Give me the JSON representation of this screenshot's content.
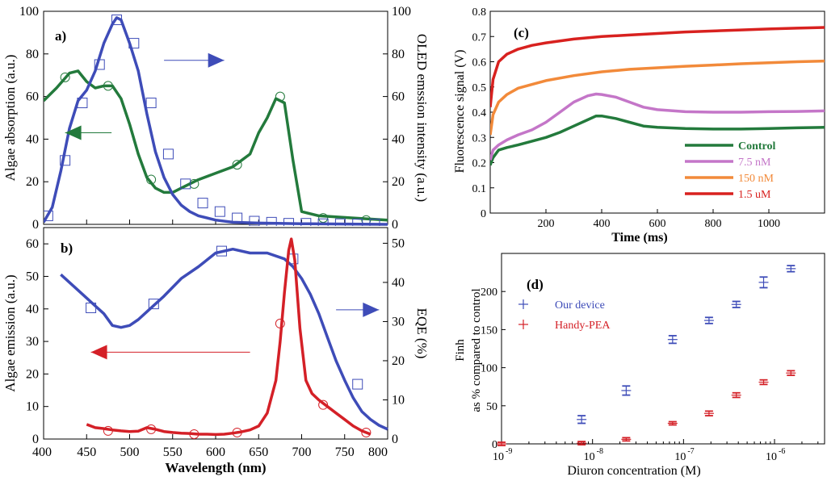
{
  "figure": {
    "panel_a_label": "a)",
    "panel_b_label": "b)",
    "panel_c_label": "(c)",
    "panel_d_label": "(d)"
  },
  "colors": {
    "green": "#237a3c",
    "blue": "#3e4cb8",
    "red": "#d42027",
    "violet": "#c476c8",
    "orange": "#f28a3a",
    "darkred": "#d8211f",
    "axis": "#000000"
  },
  "chart_data": [
    {
      "id": "a",
      "type": "line",
      "title": "a)",
      "xlabel": "",
      "ylabel": "Algae absorption (a.u.)",
      "y2label": "OLED emssion intensity (a.u.)",
      "xlim": [
        400,
        800
      ],
      "ylim": [
        0,
        100
      ],
      "y2lim": [
        0,
        100
      ],
      "xticks": [
        400,
        450,
        500,
        550,
        600,
        650,
        700,
        750,
        800
      ],
      "yticks": [
        "0",
        "20",
        "40",
        "60",
        "80",
        "100"
      ],
      "y2ticks": [
        "0",
        "20",
        "40",
        "60",
        "80",
        "100"
      ],
      "series": [
        {
          "name": "Algae absorption",
          "axis": "left",
          "color": "green",
          "marker": "circle",
          "x": [
            400,
            415,
            430,
            440,
            450,
            460,
            470,
            480,
            490,
            500,
            510,
            520,
            530,
            540,
            550,
            560,
            570,
            580,
            600,
            620,
            640,
            650,
            660,
            670,
            680,
            690,
            700,
            720,
            760,
            800
          ],
          "y": [
            58,
            64,
            71,
            72,
            67,
            64,
            65,
            65,
            59,
            47,
            33,
            22,
            17,
            15,
            15,
            17,
            19,
            21,
            24,
            27,
            33,
            43,
            50,
            59,
            57,
            30,
            6,
            4,
            3,
            2
          ],
          "markers_x": [
            425,
            475,
            525,
            575,
            625,
            675,
            725,
            775
          ],
          "markers_y": [
            69,
            65,
            21,
            19,
            28,
            60,
            3,
            2
          ]
        },
        {
          "name": "OLED emission",
          "axis": "right",
          "color": "blue",
          "marker": "square",
          "x": [
            400,
            410,
            420,
            430,
            440,
            450,
            460,
            470,
            480,
            485,
            490,
            500,
            510,
            520,
            530,
            540,
            550,
            560,
            570,
            580,
            600,
            620,
            650,
            700,
            800
          ],
          "y": [
            1,
            8,
            25,
            45,
            58,
            63,
            72,
            85,
            94,
            97,
            96,
            85,
            72,
            52,
            34,
            22,
            14,
            9,
            6,
            4,
            2,
            1,
            0.6,
            0.3,
            0
          ],
          "markers_x": [
            405,
            425,
            445,
            465,
            485,
            505,
            525,
            545,
            565,
            585,
            605,
            625,
            645,
            665,
            685,
            705,
            725,
            745,
            765,
            785
          ],
          "markers_y": [
            4,
            30,
            57,
            75,
            96,
            85,
            57,
            33,
            19,
            10,
            6,
            3,
            1.5,
            1,
            0.5,
            0.5,
            0.3,
            0.3,
            0.2,
            0.2
          ]
        }
      ],
      "annotations": [
        {
          "kind": "arrow",
          "direction": "right",
          "color": "blue",
          "from_data": [
            540,
            77
          ],
          "to_data": [
            610,
            77
          ]
        },
        {
          "kind": "arrow",
          "direction": "left",
          "color": "green",
          "from_data": [
            479,
            43
          ],
          "to_data": [
            425,
            43
          ]
        }
      ]
    },
    {
      "id": "b",
      "type": "line",
      "title": "b)",
      "xlabel": "Wavelength (nm)",
      "ylabel": "Algae emission (a.u.)",
      "y2label": "EQE (%)",
      "xlim": [
        400,
        800
      ],
      "ylim": [
        0,
        65
      ],
      "y2lim": [
        0,
        54
      ],
      "xticks": [
        400,
        450,
        500,
        550,
        600,
        650,
        700,
        750,
        800
      ],
      "yticks": [
        "0",
        "10",
        "20",
        "30",
        "40",
        "50",
        "60"
      ],
      "y2ticks": [
        "0",
        "10",
        "20",
        "30",
        "40",
        "50"
      ],
      "series": [
        {
          "name": "EQE",
          "axis": "right",
          "color": "blue",
          "marker": "square",
          "x": [
            420,
            430,
            440,
            450,
            460,
            470,
            480,
            490,
            500,
            510,
            520,
            540,
            560,
            580,
            600,
            620,
            640,
            660,
            680,
            690,
            700,
            710,
            720,
            730,
            740,
            750,
            760,
            770,
            780,
            790,
            800
          ],
          "y": [
            42,
            40,
            38,
            36,
            34,
            32,
            29,
            28.5,
            29,
            30.5,
            32.5,
            36.5,
            41,
            44,
            47.5,
            48.5,
            47.5,
            47.5,
            46,
            44,
            41,
            37,
            32,
            26,
            20,
            15,
            10.5,
            7,
            5,
            3.5,
            2.5
          ],
          "markers_x": [
            455,
            528,
            607,
            690,
            765
          ],
          "markers_y": [
            33.5,
            34.5,
            48,
            46,
            14
          ]
        },
        {
          "name": "Algae emission",
          "axis": "left",
          "color": "red",
          "marker": "circle",
          "x": [
            450,
            460,
            470,
            480,
            490,
            500,
            510,
            520,
            530,
            540,
            550,
            560,
            570,
            580,
            590,
            600,
            610,
            620,
            630,
            640,
            650,
            660,
            670,
            675,
            680,
            685,
            688,
            692,
            698,
            705,
            712,
            720,
            730,
            740,
            750,
            760,
            770,
            780
          ],
          "y": [
            4.5,
            3.5,
            3.2,
            2.8,
            2.5,
            2.3,
            2.4,
            3.5,
            3.0,
            2.3,
            2.0,
            1.8,
            1.7,
            1.5,
            1.5,
            1.4,
            1.5,
            1.8,
            2.2,
            2.8,
            4.0,
            8.0,
            18.0,
            30.0,
            45.0,
            58.0,
            61.5,
            55.0,
            34.0,
            18.0,
            14.0,
            12.0,
            10.0,
            8.0,
            6.0,
            4.0,
            2.5,
            1.5
          ],
          "markers_x": [
            475,
            525,
            575,
            625,
            675,
            725,
            775
          ],
          "markers_y": [
            2.5,
            3.0,
            1.5,
            2.0,
            35.5,
            10.5,
            2.0
          ]
        }
      ],
      "annotations": [
        {
          "kind": "arrow",
          "direction": "right",
          "color": "blue",
          "from_data": [
            740,
            33
          ],
          "to_data": [
            790,
            33
          ]
        },
        {
          "kind": "arrow",
          "direction": "left",
          "color": "red",
          "from_data": [
            640,
            26.7
          ],
          "to_data": [
            455,
            26.7
          ]
        }
      ]
    },
    {
      "id": "c",
      "type": "line",
      "title": "(c)",
      "xlabel": "Time (ms)",
      "ylabel": "Fluorescence signal (V)",
      "xlim": [
        0,
        1200
      ],
      "ylim": [
        0,
        0.8
      ],
      "xticks": [
        200,
        400,
        600,
        800,
        1000
      ],
      "yticks": [
        "0",
        "0.1",
        "0.2",
        "0.3",
        "0.4",
        "0.5",
        "0.6",
        "0.7",
        "0.8"
      ],
      "legend_position": "bottom-right",
      "series": [
        {
          "name": "Control",
          "color": "green",
          "x": [
            0,
            10,
            30,
            60,
            100,
            150,
            200,
            250,
            300,
            350,
            380,
            400,
            450,
            500,
            550,
            600,
            700,
            800,
            900,
            1000,
            1100,
            1200
          ],
          "y": [
            0.19,
            0.22,
            0.25,
            0.26,
            0.27,
            0.285,
            0.3,
            0.32,
            0.345,
            0.37,
            0.385,
            0.385,
            0.375,
            0.36,
            0.345,
            0.34,
            0.335,
            0.333,
            0.333,
            0.335,
            0.338,
            0.34
          ]
        },
        {
          "name": "7.5 nM",
          "color": "violet",
          "x": [
            0,
            10,
            30,
            60,
            100,
            150,
            200,
            250,
            300,
            350,
            380,
            400,
            450,
            500,
            550,
            600,
            700,
            800,
            900,
            1000,
            1100,
            1200
          ],
          "y": [
            0.21,
            0.25,
            0.27,
            0.29,
            0.31,
            0.33,
            0.36,
            0.4,
            0.44,
            0.465,
            0.472,
            0.47,
            0.46,
            0.44,
            0.42,
            0.41,
            0.402,
            0.4,
            0.4,
            0.402,
            0.403,
            0.405
          ]
        },
        {
          "name": "150 nM",
          "color": "orange",
          "x": [
            0,
            10,
            30,
            60,
            100,
            150,
            200,
            300,
            400,
            500,
            600,
            700,
            800,
            900,
            1000,
            1100,
            1200
          ],
          "y": [
            0.31,
            0.39,
            0.44,
            0.47,
            0.495,
            0.51,
            0.525,
            0.545,
            0.56,
            0.57,
            0.576,
            0.582,
            0.587,
            0.592,
            0.596,
            0.6,
            0.603
          ]
        },
        {
          "name": "1.5 uM",
          "color": "darkred",
          "x": [
            0,
            10,
            30,
            60,
            100,
            150,
            200,
            300,
            400,
            500,
            600,
            700,
            800,
            900,
            1000,
            1100,
            1200
          ],
          "y": [
            0.42,
            0.53,
            0.6,
            0.63,
            0.65,
            0.665,
            0.675,
            0.69,
            0.7,
            0.706,
            0.712,
            0.718,
            0.722,
            0.726,
            0.73,
            0.733,
            0.736
          ]
        }
      ]
    },
    {
      "id": "d",
      "type": "scatter",
      "title": "(d)",
      "xlabel": "Diuron concentration (M)",
      "ylabel": "Finh",
      "ylabel2": "as % compared to control",
      "xscale": "log",
      "xlim": [
        -9,
        -5.45
      ],
      "ylim": [
        0,
        250
      ],
      "xticks": [
        -9,
        -8,
        -7,
        -6
      ],
      "xtick_labels": [
        "10",
        "10",
        "10",
        "10"
      ],
      "xtick_exponents": [
        "-9",
        "-8",
        "-7",
        "-6"
      ],
      "yticks": [
        "0",
        "50",
        "100",
        "150",
        "200"
      ],
      "legend_position": "upper-left",
      "series": [
        {
          "name": "Our device",
          "color": "blue",
          "x": [
            -8.12,
            -7.63,
            -7.12,
            -6.72,
            -6.42,
            -6.12,
            -5.82
          ],
          "y": [
            32,
            70,
            137,
            162,
            183,
            212,
            230
          ],
          "err": [
            5,
            6,
            5,
            4,
            4,
            7,
            4
          ]
        },
        {
          "name": "Handy-PEA",
          "color": "red",
          "x": [
            -9.0,
            -8.12,
            -7.63,
            -7.12,
            -6.72,
            -6.42,
            -6.12,
            -5.82
          ],
          "y": [
            0,
            1,
            6,
            27,
            40,
            64,
            81,
            93
          ],
          "err": [
            1,
            2,
            2,
            2,
            3,
            3,
            3,
            3
          ]
        }
      ]
    }
  ]
}
